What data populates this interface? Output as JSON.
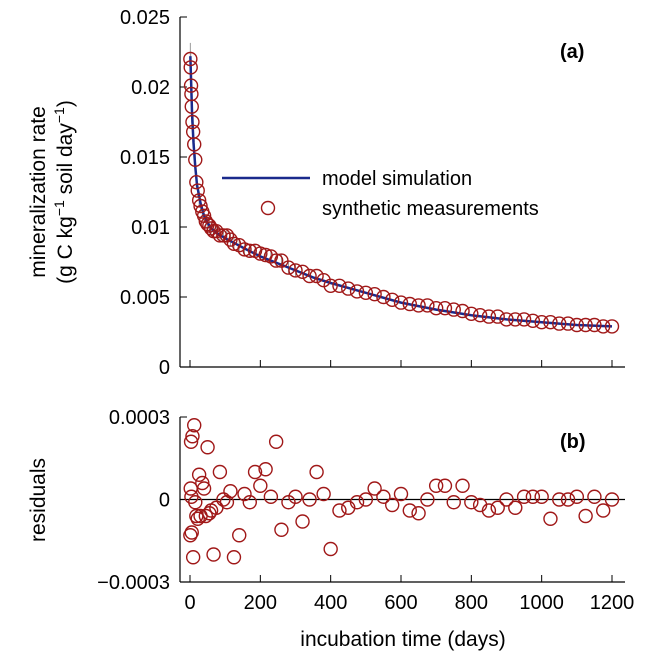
{
  "chart_data": [
    {
      "panel": "(a)",
      "type": "line+scatter",
      "ylabel_line1": "mineralization rate",
      "ylabel_line2_parts": [
        "(g C kg",
        "−1",
        " soil day",
        "−1",
        ")"
      ],
      "ylim": [
        0,
        0.025
      ],
      "xlim": [
        0,
        1200
      ],
      "yticks": [
        "0",
        "0.005",
        "0.01",
        "0.015",
        "0.02",
        "0.025"
      ],
      "ytick_values": [
        0,
        0.005,
        0.01,
        0.015,
        0.02,
        0.025
      ],
      "legend": {
        "placement": "center-right",
        "entries": [
          "model simulation",
          "synthetic measurements"
        ]
      },
      "colors": {
        "model": "#1a2a8c",
        "measurements": "#a01818",
        "errorbar": "#9a9a9a"
      },
      "series": [
        {
          "name": "model simulation",
          "x": [
            1,
            3,
            6,
            10,
            15,
            20,
            30,
            40,
            50,
            60,
            80,
            100,
            130,
            160,
            200,
            250,
            300,
            350,
            400,
            500,
            600,
            700,
            800,
            900,
            1000,
            1100,
            1200
          ],
          "y": [
            0.0222,
            0.0205,
            0.018,
            0.016,
            0.0143,
            0.013,
            0.0117,
            0.0108,
            0.0103,
            0.0099,
            0.0095,
            0.0092,
            0.0088,
            0.0084,
            0.0079,
            0.0074,
            0.0069,
            0.0064,
            0.006,
            0.0053,
            0.0046,
            0.0041,
            0.0037,
            0.0034,
            0.0032,
            0.003,
            0.0029
          ]
        },
        {
          "name": "synthetic measurements",
          "x": [
            1,
            2,
            3,
            4,
            5,
            7,
            9,
            12,
            15,
            18,
            22,
            26,
            30,
            35,
            40,
            45,
            50,
            55,
            60,
            67,
            75,
            85,
            95,
            105,
            115,
            125,
            140,
            155,
            170,
            185,
            200,
            215,
            230,
            245,
            260,
            280,
            300,
            320,
            340,
            360,
            380,
            400,
            425,
            450,
            475,
            500,
            525,
            550,
            575,
            600,
            625,
            650,
            675,
            700,
            725,
            750,
            775,
            800,
            825,
            850,
            875,
            900,
            925,
            950,
            975,
            1000,
            1025,
            1050,
            1075,
            1100,
            1125,
            1150,
            1175,
            1200
          ],
          "y": [
            0.022,
            0.0214,
            0.0201,
            0.0195,
            0.0186,
            0.0175,
            0.0168,
            0.0159,
            0.0148,
            0.0132,
            0.0126,
            0.0119,
            0.0115,
            0.0111,
            0.0108,
            0.0104,
            0.0102,
            0.0101,
            0.0099,
            0.0097,
            0.0097,
            0.0094,
            0.0094,
            0.0094,
            0.0091,
            0.0088,
            0.0087,
            0.0084,
            0.0083,
            0.0083,
            0.0081,
            0.008,
            0.0079,
            0.0076,
            0.0076,
            0.0071,
            0.0069,
            0.0068,
            0.0065,
            0.0065,
            0.0062,
            0.0058,
            0.0058,
            0.0056,
            0.0054,
            0.0053,
            0.0052,
            0.005,
            0.0048,
            0.0046,
            0.0045,
            0.0044,
            0.0044,
            0.0042,
            0.0042,
            0.0041,
            0.004,
            0.0038,
            0.0037,
            0.0036,
            0.0036,
            0.0034,
            0.0034,
            0.0034,
            0.0033,
            0.0032,
            0.0032,
            0.0031,
            0.0031,
            0.003,
            0.003,
            0.003,
            0.0029,
            0.0029
          ]
        }
      ]
    },
    {
      "panel": "(b)",
      "type": "scatter",
      "ylabel": "residuals",
      "xlabel": "incubation time (days)",
      "ylim": [
        -0.0003,
        0.0003
      ],
      "xlim": [
        0,
        1200
      ],
      "yticks": [
        "0.0003",
        "0",
        "−0.0003"
      ],
      "ytick_values": [
        0.0003,
        0,
        -0.0003
      ],
      "xticks": [
        "0",
        "200",
        "400",
        "600",
        "800",
        "1000",
        "1200"
      ],
      "xtick_values": [
        0,
        200,
        400,
        600,
        800,
        1000,
        1200
      ],
      "colors": {
        "points": "#a01818",
        "zero_line": "#000000"
      },
      "series": [
        {
          "name": "residuals",
          "x": [
            1,
            2,
            3,
            4,
            5,
            7,
            9,
            12,
            15,
            18,
            22,
            26,
            30,
            35,
            40,
            45,
            50,
            55,
            60,
            67,
            75,
            85,
            95,
            105,
            115,
            125,
            140,
            155,
            170,
            185,
            200,
            215,
            230,
            245,
            260,
            280,
            300,
            320,
            340,
            360,
            380,
            400,
            425,
            450,
            475,
            500,
            525,
            550,
            575,
            600,
            625,
            650,
            675,
            700,
            725,
            750,
            775,
            800,
            825,
            850,
            875,
            900,
            925,
            950,
            975,
            1000,
            1025,
            1050,
            1075,
            1100,
            1125,
            1150,
            1175,
            1200
          ],
          "y": [
            -0.00013,
            4e-05,
            0.00021,
            1e-05,
            -0.00012,
            0.00023,
            -0.00021,
            0.00027,
            -1e-05,
            -6e-05,
            -7e-05,
            9e-05,
            -6e-05,
            6e-05,
            4e-05,
            -6e-05,
            0.00019,
            -5e-05,
            -4e-05,
            -0.0002,
            -3e-05,
            0.0001,
            0.0,
            -1e-05,
            3e-05,
            -0.00021,
            -0.00013,
            2e-05,
            -1e-05,
            0.0001,
            5e-05,
            0.00011,
            1e-05,
            0.00021,
            -0.00011,
            -1e-05,
            1e-05,
            -8e-05,
            0.0,
            0.0001,
            2e-05,
            -0.00018,
            -4e-05,
            -3e-05,
            -1e-05,
            0.0,
            4e-05,
            1e-05,
            -2e-05,
            2e-05,
            -4e-05,
            -5e-05,
            0.0,
            5e-05,
            5e-05,
            -1e-05,
            5e-05,
            -1e-05,
            -2e-05,
            -4e-05,
            -3e-05,
            0.0,
            -3e-05,
            1e-05,
            1e-05,
            1e-05,
            -7e-05,
            0.0,
            0.0,
            1e-05,
            -6e-05,
            1e-05,
            -4e-05,
            0.0
          ]
        }
      ]
    }
  ]
}
